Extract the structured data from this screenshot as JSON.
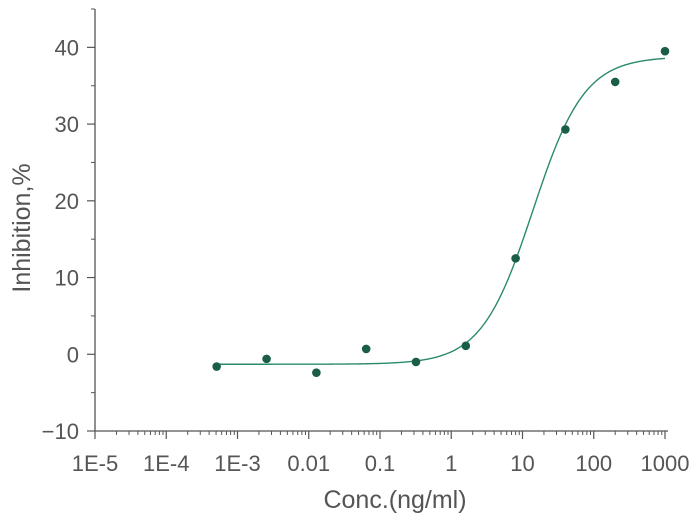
{
  "chart_data": {
    "type": "scatter",
    "title": "",
    "xlabel": "Conc.(ng/ml)",
    "ylabel": "Inhibition,%",
    "x_scale": "log",
    "xlim": [
      1e-05,
      1000
    ],
    "ylim": [
      -10,
      45
    ],
    "x_ticks": [
      {
        "value": 1e-05,
        "label": "1E-5"
      },
      {
        "value": 0.0001,
        "label": "1E-4"
      },
      {
        "value": 0.001,
        "label": "1E-3"
      },
      {
        "value": 0.01,
        "label": "0.01"
      },
      {
        "value": 0.1,
        "label": "0.1"
      },
      {
        "value": 1,
        "label": "1"
      },
      {
        "value": 10,
        "label": "10"
      },
      {
        "value": 100,
        "label": "100"
      },
      {
        "value": 1000,
        "label": "1000"
      }
    ],
    "y_ticks": [
      {
        "value": -10,
        "label": "−10"
      },
      {
        "value": 0,
        "label": "0"
      },
      {
        "value": 10,
        "label": "10"
      },
      {
        "value": 20,
        "label": "20"
      },
      {
        "value": 30,
        "label": "30"
      },
      {
        "value": 40,
        "label": "40"
      }
    ],
    "points": [
      {
        "x": 0.00051,
        "y": -1.6
      },
      {
        "x": 0.00256,
        "y": -0.6
      },
      {
        "x": 0.0128,
        "y": -2.4
      },
      {
        "x": 0.064,
        "y": 0.7
      },
      {
        "x": 0.32,
        "y": -1.0
      },
      {
        "x": 1.6,
        "y": 1.1
      },
      {
        "x": 8.0,
        "y": 12.5
      },
      {
        "x": 40,
        "y": 29.3
      },
      {
        "x": 200,
        "y": 35.5
      },
      {
        "x": 1000,
        "y": 39.5
      }
    ],
    "fit": {
      "model": "4PL",
      "bottom": -1.3,
      "top": 38.8,
      "ec50": 14,
      "hill": 1.2
    },
    "grid": false,
    "colors": {
      "points": "#1a5e45",
      "curve": "#2a8a6a",
      "axis": "#555555"
    }
  }
}
